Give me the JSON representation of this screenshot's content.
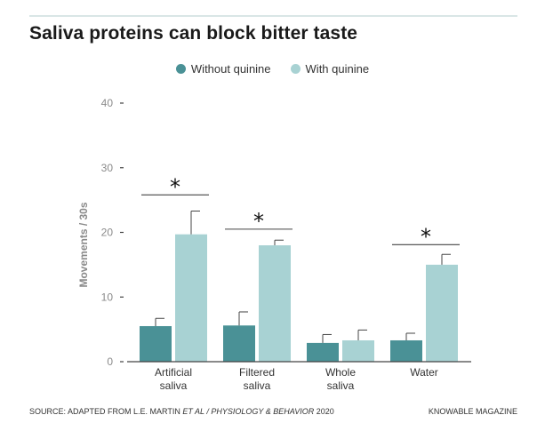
{
  "title": "Saliva proteins can block bitter taste",
  "source": {
    "prefix": "SOURCE: ADAPTED FROM L.E. MARTIN ",
    "italic": "ET AL / PHYSIOLOGY & BEHAVIOR",
    "suffix": " 2020"
  },
  "credit": "KNOWABLE MAGAZINE",
  "colors": {
    "without": "#4a9196",
    "with": "#a8d2d3",
    "axis": "#444444",
    "tick_text": "#8a8a8a"
  },
  "chart_data": {
    "type": "bar",
    "title": "Saliva proteins can block bitter taste",
    "xlabel": "",
    "ylabel": "Movements / 30s",
    "ylim": [
      0,
      40
    ],
    "yticks": [
      0,
      10,
      20,
      30,
      40
    ],
    "categories": [
      [
        "Artificial",
        "saliva"
      ],
      [
        "Filtered",
        "saliva"
      ],
      [
        "Whole",
        "saliva"
      ],
      [
        "Water"
      ]
    ],
    "series": [
      {
        "name": "Without quinine",
        "values": [
          5.5,
          5.6,
          2.9,
          3.3
        ],
        "errors": [
          1.2,
          2.1,
          1.3,
          1.1
        ]
      },
      {
        "name": "With quinine",
        "values": [
          19.7,
          18.0,
          3.3,
          15.0
        ],
        "errors": [
          3.6,
          0.8,
          1.6,
          1.6
        ]
      }
    ],
    "significance": [
      {
        "category_index": 0,
        "label": "*",
        "level": 25.8
      },
      {
        "category_index": 1,
        "label": "*",
        "level": 20.5
      },
      {
        "category_index": 3,
        "label": "*",
        "level": 18.1
      }
    ]
  }
}
